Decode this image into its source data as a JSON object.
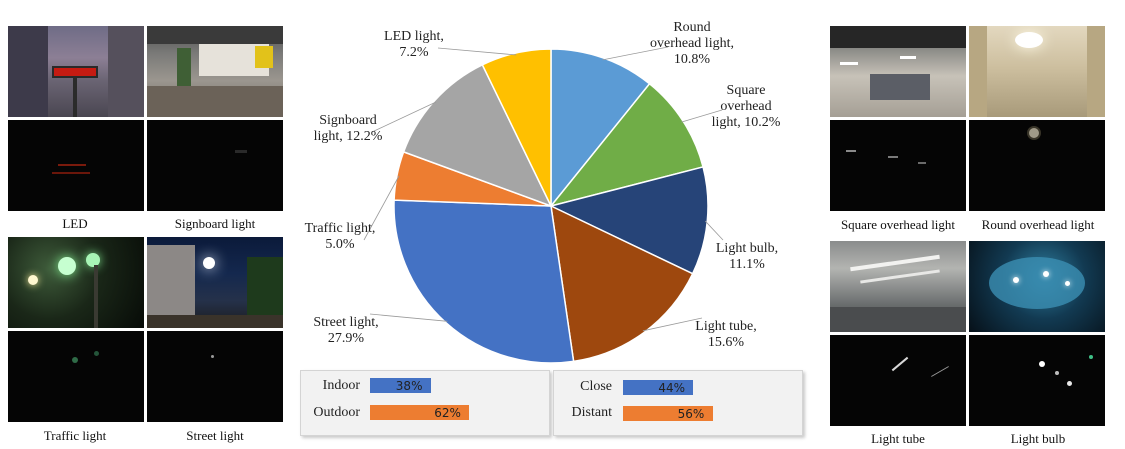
{
  "captions": {
    "led": "LED",
    "signboard": "Signboard light",
    "traffic": "Traffic light",
    "street": "Street light",
    "square": "Square overhead light",
    "round": "Round overhead light",
    "tube": "Light tube",
    "bulb": "Light bulb"
  },
  "colors": {
    "blue": "#4472c4",
    "orange": "#ed7d31",
    "gray": "#a5a5a5",
    "yellow": "#ffc000",
    "lightblue": "#5b9bd5",
    "green": "#70ad47",
    "navy": "#264478",
    "brown": "#9e480e"
  },
  "chart_data": [
    {
      "type": "pie",
      "slices": [
        {
          "label_lines": [
            "Round",
            "overhead light,",
            "10.8%"
          ],
          "value": 10.8,
          "color": "#5b9bd5"
        },
        {
          "label_lines": [
            "Square",
            "overhead",
            "light, 10.2%"
          ],
          "value": 10.2,
          "color": "#70ad47"
        },
        {
          "label_lines": [
            "Light bulb,",
            "11.1%"
          ],
          "value": 11.1,
          "color": "#264478"
        },
        {
          "label_lines": [
            "Light tube,",
            "15.6%"
          ],
          "value": 15.6,
          "color": "#9e480e"
        },
        {
          "label_lines": [
            "Street light,",
            "27.9%"
          ],
          "value": 27.9,
          "color": "#4472c4"
        },
        {
          "label_lines": [
            "Traffic light,",
            "5.0%"
          ],
          "value": 5.0,
          "color": "#ed7d31"
        },
        {
          "label_lines": [
            "Signboard",
            "light, 12.2%"
          ],
          "value": 12.2,
          "color": "#a5a5a5"
        },
        {
          "label_lines": [
            "LED light,",
            "7.2%"
          ],
          "value": 7.2,
          "color": "#ffc000"
        }
      ]
    },
    {
      "type": "bar",
      "orientation": "horizontal",
      "categories": [
        "Indoor",
        "Outdoor"
      ],
      "values": [
        38,
        62
      ],
      "value_labels": [
        "38%",
        "62%"
      ],
      "colors": [
        "#4472c4",
        "#ed7d31"
      ]
    },
    {
      "type": "bar",
      "orientation": "horizontal",
      "categories": [
        "Close",
        "Distant"
      ],
      "values": [
        44,
        56
      ],
      "value_labels": [
        "44%",
        "56%"
      ],
      "colors": [
        "#4472c4",
        "#ed7d31"
      ]
    }
  ]
}
